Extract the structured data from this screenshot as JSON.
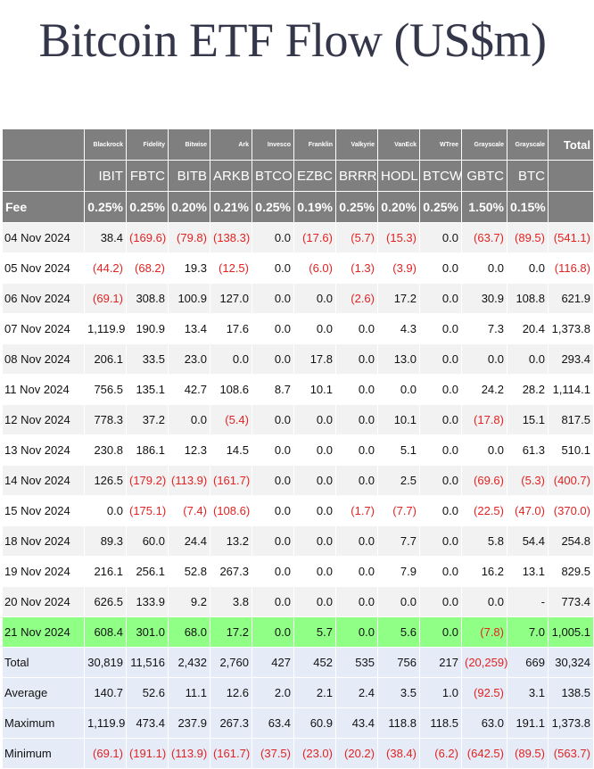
{
  "title": "Bitcoin ETF Flow (US$m)",
  "colors": {
    "header_bg": "#7f7f7f",
    "negative": "#e32222",
    "highlight_row": "#90ff86",
    "stats_bg": "#e6ecf7",
    "alt_row": "#f2f2f2"
  },
  "table": {
    "issuers": [
      "",
      "Blackrock",
      "Fidelity",
      "Bitwise",
      "Ark",
      "Invesco",
      "Franklin",
      "Valkyrie",
      "VanEck",
      "WTree",
      "Grayscale",
      "Grayscale",
      "Total"
    ],
    "tickers": [
      "",
      "IBIT",
      "FBTC",
      "BITB",
      "ARKB",
      "BTCO",
      "EZBC",
      "BRRR",
      "HODL",
      "BTCW",
      "GBTC",
      "BTC",
      ""
    ],
    "fees": [
      "Fee",
      "0.25%",
      "0.25%",
      "0.20%",
      "0.21%",
      "0.25%",
      "0.19%",
      "0.25%",
      "0.20%",
      "0.25%",
      "1.50%",
      "0.15%",
      ""
    ],
    "rows": [
      [
        "04 Nov 2024",
        "38.4",
        "(169.6)",
        "(79.8)",
        "(138.3)",
        "0.0",
        "(17.6)",
        "(5.7)",
        "(15.3)",
        "0.0",
        "(63.7)",
        "(89.5)",
        "(541.1)"
      ],
      [
        "05 Nov 2024",
        "(44.2)",
        "(68.2)",
        "19.3",
        "(12.5)",
        "0.0",
        "(6.0)",
        "(1.3)",
        "(3.9)",
        "0.0",
        "0.0",
        "0.0",
        "(116.8)"
      ],
      [
        "06 Nov 2024",
        "(69.1)",
        "308.8",
        "100.9",
        "127.0",
        "0.0",
        "0.0",
        "(2.6)",
        "17.2",
        "0.0",
        "30.9",
        "108.8",
        "621.9"
      ],
      [
        "07 Nov 2024",
        "1,119.9",
        "190.9",
        "13.4",
        "17.6",
        "0.0",
        "0.0",
        "0.0",
        "4.3",
        "0.0",
        "7.3",
        "20.4",
        "1,373.8"
      ],
      [
        "08 Nov 2024",
        "206.1",
        "33.5",
        "23.0",
        "0.0",
        "0.0",
        "17.8",
        "0.0",
        "13.0",
        "0.0",
        "0.0",
        "0.0",
        "293.4"
      ],
      [
        "11 Nov 2024",
        "756.5",
        "135.1",
        "42.7",
        "108.6",
        "8.7",
        "10.1",
        "0.0",
        "0.0",
        "0.0",
        "24.2",
        "28.2",
        "1,114.1"
      ],
      [
        "12 Nov 2024",
        "778.3",
        "37.2",
        "0.0",
        "(5.4)",
        "0.0",
        "0.0",
        "0.0",
        "10.1",
        "0.0",
        "(17.8)",
        "15.1",
        "817.5"
      ],
      [
        "13 Nov 2024",
        "230.8",
        "186.1",
        "12.3",
        "14.5",
        "0.0",
        "0.0",
        "0.0",
        "5.1",
        "0.0",
        "0.0",
        "61.3",
        "510.1"
      ],
      [
        "14 Nov 2024",
        "126.5",
        "(179.2)",
        "(113.9)",
        "(161.7)",
        "0.0",
        "0.0",
        "0.0",
        "2.5",
        "0.0",
        "(69.6)",
        "(5.3)",
        "(400.7)"
      ],
      [
        "15 Nov 2024",
        "0.0",
        "(175.1)",
        "(7.4)",
        "(108.6)",
        "0.0",
        "0.0",
        "(1.7)",
        "(7.7)",
        "0.0",
        "(22.5)",
        "(47.0)",
        "(370.0)"
      ],
      [
        "18 Nov 2024",
        "89.3",
        "60.0",
        "24.4",
        "13.2",
        "0.0",
        "0.0",
        "0.0",
        "7.7",
        "0.0",
        "5.8",
        "54.4",
        "254.8"
      ],
      [
        "19 Nov 2024",
        "216.1",
        "256.1",
        "52.8",
        "267.3",
        "0.0",
        "0.0",
        "0.0",
        "7.9",
        "0.0",
        "16.2",
        "13.1",
        "829.5"
      ],
      [
        "20 Nov 2024",
        "626.5",
        "133.9",
        "9.2",
        "3.8",
        "0.0",
        "0.0",
        "0.0",
        "0.0",
        "0.0",
        "0.0",
        "-",
        "773.4"
      ],
      [
        "21 Nov 2024",
        "608.4",
        "301.0",
        "68.0",
        "17.2",
        "0.0",
        "5.7",
        "0.0",
        "5.6",
        "0.0",
        "(7.8)",
        "7.0",
        "1,005.1"
      ]
    ],
    "stats": [
      [
        "Total",
        "30,819",
        "11,516",
        "2,432",
        "2,760",
        "427",
        "452",
        "535",
        "756",
        "217",
        "(20,259)",
        "669",
        "30,324"
      ],
      [
        "Average",
        "140.7",
        "52.6",
        "11.1",
        "12.6",
        "2.0",
        "2.1",
        "2.4",
        "3.5",
        "1.0",
        "(92.5)",
        "3.1",
        "138.5"
      ],
      [
        "Maximum",
        "1,119.9",
        "473.4",
        "237.9",
        "267.3",
        "63.4",
        "60.9",
        "43.4",
        "118.8",
        "118.5",
        "63.0",
        "191.1",
        "1,373.8"
      ],
      [
        "Minimum",
        "(69.1)",
        "(191.1)",
        "(113.9)",
        "(161.7)",
        "(37.5)",
        "(23.0)",
        "(20.2)",
        "(38.4)",
        "(6.2)",
        "(642.5)",
        "(89.5)",
        "(563.7)"
      ]
    ]
  }
}
